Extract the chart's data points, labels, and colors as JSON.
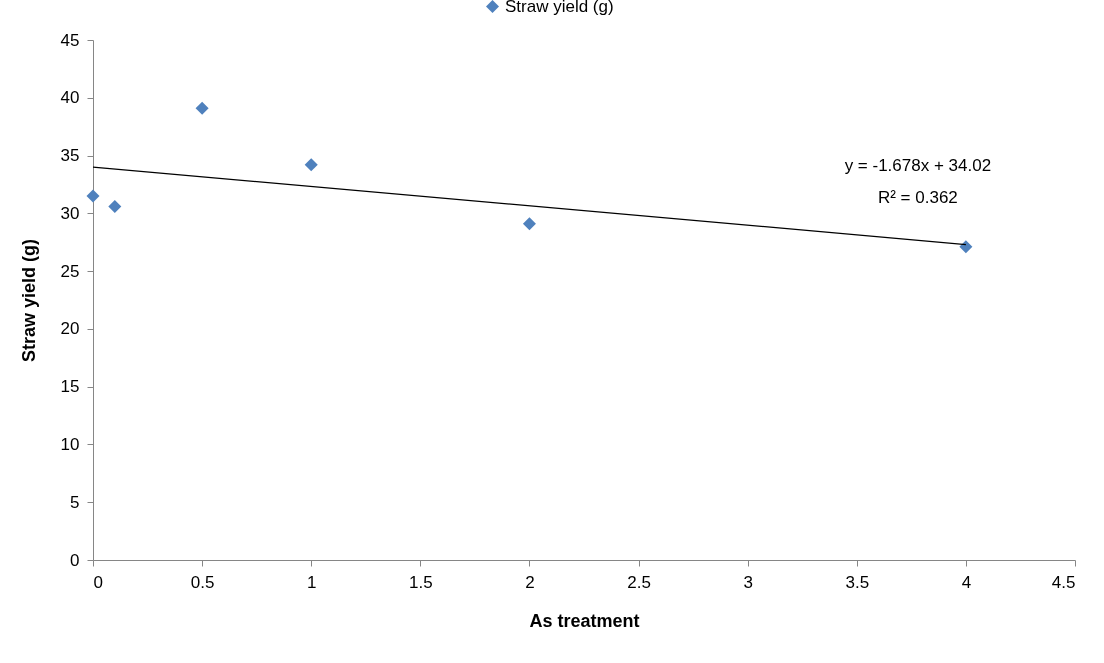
{
  "chart_data": {
    "type": "scatter",
    "xlabel": "As treatment",
    "ylabel": "Straw yield (g)",
    "x": [
      0,
      0.1,
      0.5,
      1,
      2,
      4
    ],
    "series": [
      {
        "name": "Straw yield (g)",
        "color": "#4f81bd",
        "values": [
          31.5,
          30.6,
          39.1,
          34.2,
          29.1,
          27.1
        ]
      },
      {
        "type": "line",
        "color": "#000000",
        "marker": "none",
        "x": [
          0,
          4
        ],
        "values": [
          34.0,
          27.3
        ]
      }
    ],
    "xlim": [
      0,
      4.5
    ],
    "xticks": [
      0,
      0.5,
      1,
      1.5,
      2,
      2.5,
      3,
      3.5,
      4,
      4.5
    ],
    "ylim": [
      0,
      45
    ],
    "yticks": [
      0,
      5,
      10,
      15,
      20,
      25,
      30,
      35,
      40,
      45
    ],
    "annotations": [
      "y = -1.678x + 34.02",
      "R² = 0.362"
    ],
    "legend": "top",
    "grid": false,
    "marker": "diamond"
  }
}
